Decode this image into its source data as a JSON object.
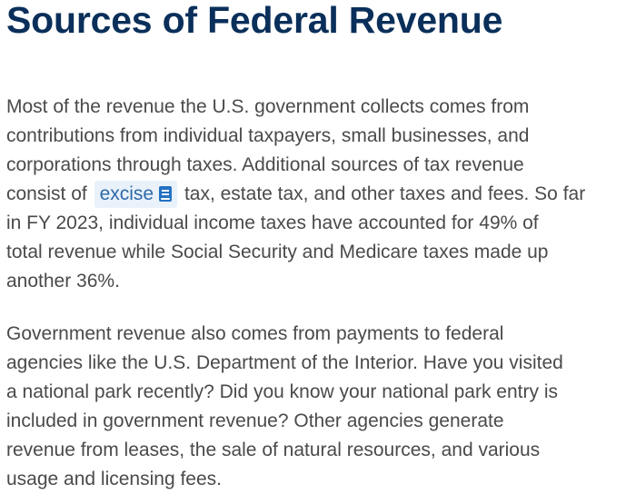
{
  "page_title": "Sources of Federal Revenue",
  "paragraph1": {
    "line1": "Most of the revenue the U.S. government collects comes from",
    "line2": "contributions from individual taxpayers, small businesses, and",
    "line3": "corporations through taxes. Additional sources of tax revenue",
    "line4_before": "consist of",
    "glossary_term": "excise",
    "glossary_icon": "book-icon",
    "line4_after": "tax, estate tax, and other taxes and fees. So far",
    "line5": "in FY 2023, individual income taxes have accounted for 49% of",
    "line6": "total revenue while Social Security and Medicare taxes made up",
    "line7": "another 36%."
  },
  "paragraph2": {
    "line1": "Government revenue also comes from payments to federal",
    "line2": "agencies like the U.S. Department of the Interior. Have you visited",
    "line3": "a national park recently? Did you know your national park entry is",
    "line4": "included in government revenue? Other agencies generate",
    "line5": "revenue from leases, the sale of natural resources, and various",
    "line6": "usage and licensing fees."
  },
  "colors": {
    "title": "#0a2f5a",
    "body_text": "#4a4a4a",
    "glossary_bg": "#e9f1fa",
    "glossary_text": "#2e6aa8",
    "icon": "#2272c3"
  }
}
